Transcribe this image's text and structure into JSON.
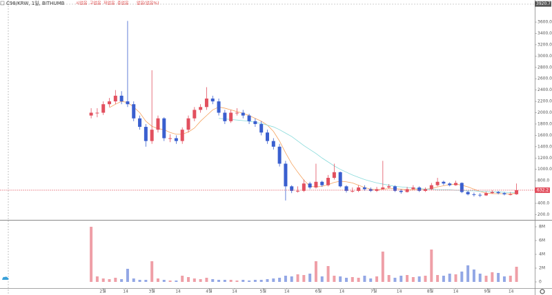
{
  "chart_data": {
    "type": "candlestick",
    "title": "C98/KRW, 1일, BITHUMB",
    "ohlc_legend": [
      "시없음",
      "고없음",
      "저없음",
      "종없음",
      "없음(없음%)"
    ],
    "up_color": "#e2505f",
    "down_color": "#3a5fcf",
    "open": [
      1950,
      2000,
      2000,
      2150,
      2200,
      2300,
      2200,
      2150,
      1900,
      1750,
      1500,
      1700,
      1900,
      1550,
      1550,
      1500,
      1700,
      1900,
      2050,
      2100,
      2250,
      2200,
      2000,
      1850,
      2000,
      2000,
      1950,
      1850,
      1800,
      1650,
      1500,
      1400,
      1100,
      700,
      620,
      620,
      750,
      680,
      780,
      720,
      850,
      950,
      700,
      620,
      620,
      680,
      650,
      620,
      650,
      680,
      700,
      620,
      600,
      650,
      680,
      620,
      650,
      720,
      780,
      750,
      720,
      760,
      600,
      560,
      550,
      540,
      580,
      600,
      580,
      560,
      560
    ],
    "high": [
      2080,
      2080,
      2200,
      2260,
      2400,
      2380,
      3620,
      2200,
      1950,
      1800,
      2750,
      1950,
      1920,
      1620,
      1600,
      1740,
      1950,
      2100,
      2150,
      2450,
      2300,
      2250,
      2050,
      2050,
      2080,
      2050,
      1980,
      1900,
      1850,
      1700,
      1550,
      1450,
      1150,
      720,
      700,
      820,
      780,
      1100,
      800,
      900,
      1100,
      960,
      720,
      680,
      720,
      720,
      680,
      690,
      1150,
      740,
      720,
      650,
      690,
      720,
      700,
      680,
      760,
      850,
      800,
      770,
      800,
      770,
      620,
      590,
      580,
      610,
      630,
      620,
      600,
      600,
      750
    ],
    "low": [
      1900,
      1920,
      1960,
      2100,
      2150,
      2150,
      2100,
      1850,
      1700,
      1400,
      1450,
      1650,
      1500,
      1480,
      1450,
      1450,
      1650,
      1850,
      2000,
      2050,
      2150,
      1950,
      1800,
      1820,
      1950,
      1900,
      1800,
      1750,
      1600,
      1450,
      1350,
      1050,
      450,
      580,
      590,
      600,
      650,
      660,
      690,
      700,
      820,
      680,
      590,
      590,
      600,
      620,
      600,
      600,
      640,
      660,
      600,
      570,
      590,
      640,
      600,
      600,
      630,
      700,
      720,
      700,
      710,
      580,
      540,
      520,
      510,
      530,
      570,
      560,
      540,
      540,
      550
    ],
    "close": [
      2000,
      2000,
      2150,
      2200,
      2300,
      2200,
      2150,
      1900,
      1750,
      1500,
      1700,
      1900,
      1550,
      1550,
      1500,
      1700,
      1900,
      2050,
      2100,
      2250,
      2200,
      2000,
      1850,
      2000,
      2000,
      1950,
      1850,
      1800,
      1650,
      1500,
      1400,
      1100,
      700,
      620,
      620,
      750,
      680,
      780,
      720,
      850,
      950,
      700,
      620,
      620,
      680,
      650,
      620,
      650,
      680,
      700,
      620,
      600,
      650,
      680,
      620,
      650,
      720,
      780,
      750,
      720,
      760,
      600,
      560,
      550,
      540,
      580,
      600,
      580,
      560,
      560,
      632.2
    ],
    "series": [
      {
        "color": "#f5a25d",
        "values": [
          null,
          null,
          null,
          2090,
          2150,
          2200,
          2180,
          2100,
          2000,
          1850,
          1760,
          1720,
          1700,
          1650,
          1620,
          1620,
          1660,
          1730,
          1850,
          1950,
          2050,
          2100,
          2080,
          2050,
          2020,
          1990,
          1950,
          1900,
          1850,
          1780,
          1670,
          1500,
          1290,
          1100,
          950,
          810,
          700,
          690,
          700,
          730,
          770,
          790,
          780,
          760,
          720,
          680,
          650,
          640,
          650,
          660,
          660,
          650,
          640,
          640,
          650,
          650,
          660,
          690,
          710,
          730,
          740,
          720,
          690,
          650,
          610,
          580,
          570,
          570,
          570,
          565,
          580
        ]
      },
      {
        "color": "#86dada",
        "values": [
          null,
          null,
          null,
          null,
          null,
          null,
          null,
          null,
          null,
          null,
          null,
          null,
          null,
          null,
          null,
          null,
          null,
          null,
          null,
          null,
          null,
          1900,
          1890,
          1880,
          1870,
          1860,
          1850,
          1830,
          1810,
          1780,
          1750,
          1700,
          1640,
          1580,
          1500,
          1420,
          1350,
          1280,
          1200,
          1130,
          1060,
          1000,
          950,
          900,
          860,
          820,
          790,
          760,
          740,
          720,
          700,
          690,
          680,
          670,
          660,
          650,
          650,
          640,
          640,
          640,
          630,
          630,
          620,
          620,
          610,
          610,
          600,
          600,
          595,
          590,
          590
        ]
      }
    ],
    "volume": {
      "values": [
        8000000,
        800000,
        500000,
        400000,
        600000,
        400000,
        1900000,
        500000,
        300000,
        300000,
        3000000,
        500000,
        300000,
        200000,
        200000,
        900000,
        700000,
        500000,
        400000,
        600000,
        400000,
        300000,
        300000,
        300000,
        200000,
        300000,
        200000,
        300000,
        300000,
        400000,
        500000,
        600000,
        900000,
        800000,
        1100000,
        1000000,
        1200000,
        3000000,
        800000,
        2300000,
        900000,
        800000,
        600000,
        700000,
        600000,
        900000,
        500000,
        800000,
        4400000,
        1000000,
        600000,
        900000,
        1000000,
        700000,
        800000,
        900000,
        4700000,
        1000000,
        900000,
        1200000,
        1100000,
        1500000,
        2400000,
        1800000,
        1200000,
        900000,
        1400000,
        1300000,
        800000,
        900000,
        2200000
      ],
      "ylim": [
        -900000,
        8900000
      ],
      "yticks": [
        0,
        {
          "value": 2000000,
          "label": "2M"
        },
        {
          "value": 4000000,
          "label": "4M"
        },
        {
          "value": 6000000,
          "label": "6M"
        },
        {
          "value": 8000000,
          "label": "8M"
        }
      ]
    },
    "ylim": [
      120,
      3990
    ],
    "yticks": [
      {
        "value": 200,
        "label": "200.0"
      },
      {
        "value": 400,
        "label": "400.0"
      },
      {
        "value": 600,
        "label": "600.0"
      },
      {
        "value": 800,
        "label": "800.0"
      },
      {
        "value": 1000,
        "label": "1000.0"
      },
      {
        "value": 1200,
        "label": "1200.0"
      },
      {
        "value": 1400,
        "label": "1400.0"
      },
      {
        "value": 1600,
        "label": "1600.0"
      },
      {
        "value": 1800,
        "label": "1800.0"
      },
      {
        "value": 2000,
        "label": "2000.0"
      },
      {
        "value": 2200,
        "label": "2200.0"
      },
      {
        "value": 2400,
        "label": "2400.0"
      },
      {
        "value": 2600,
        "label": "2600.0"
      },
      {
        "value": 2800,
        "label": "2800.0"
      },
      {
        "value": 3000,
        "label": "3000.0"
      },
      {
        "value": 3200,
        "label": "3200.0"
      },
      {
        "value": 3400,
        "label": "3400.0"
      },
      {
        "value": 3600,
        "label": "3600.0"
      }
    ],
    "last_price": 632.2,
    "top_price": 3920.7,
    "xlim": [
      -15,
      73
    ],
    "xticks": [
      {
        "value": 1.93,
        "label": "2월"
      },
      {
        "value": 5.68,
        "label": "14"
      },
      {
        "value": 10,
        "label": "3월"
      },
      {
        "value": 14.3,
        "label": "14"
      },
      {
        "value": 19.4,
        "label": "4월"
      },
      {
        "value": 23.6,
        "label": "14"
      },
      {
        "value": 28.3,
        "label": "5월"
      },
      {
        "value": 32.2,
        "label": "14"
      },
      {
        "value": 37.4,
        "label": "6월"
      },
      {
        "value": 41.25,
        "label": "14"
      },
      {
        "value": 46.5,
        "label": "7월"
      },
      {
        "value": 50.7,
        "label": "14"
      },
      {
        "value": 55.8,
        "label": "8월"
      },
      {
        "value": 60,
        "label": "14"
      },
      {
        "value": 65.2,
        "label": "9월"
      },
      {
        "value": 69.1,
        "label": "14"
      }
    ]
  }
}
